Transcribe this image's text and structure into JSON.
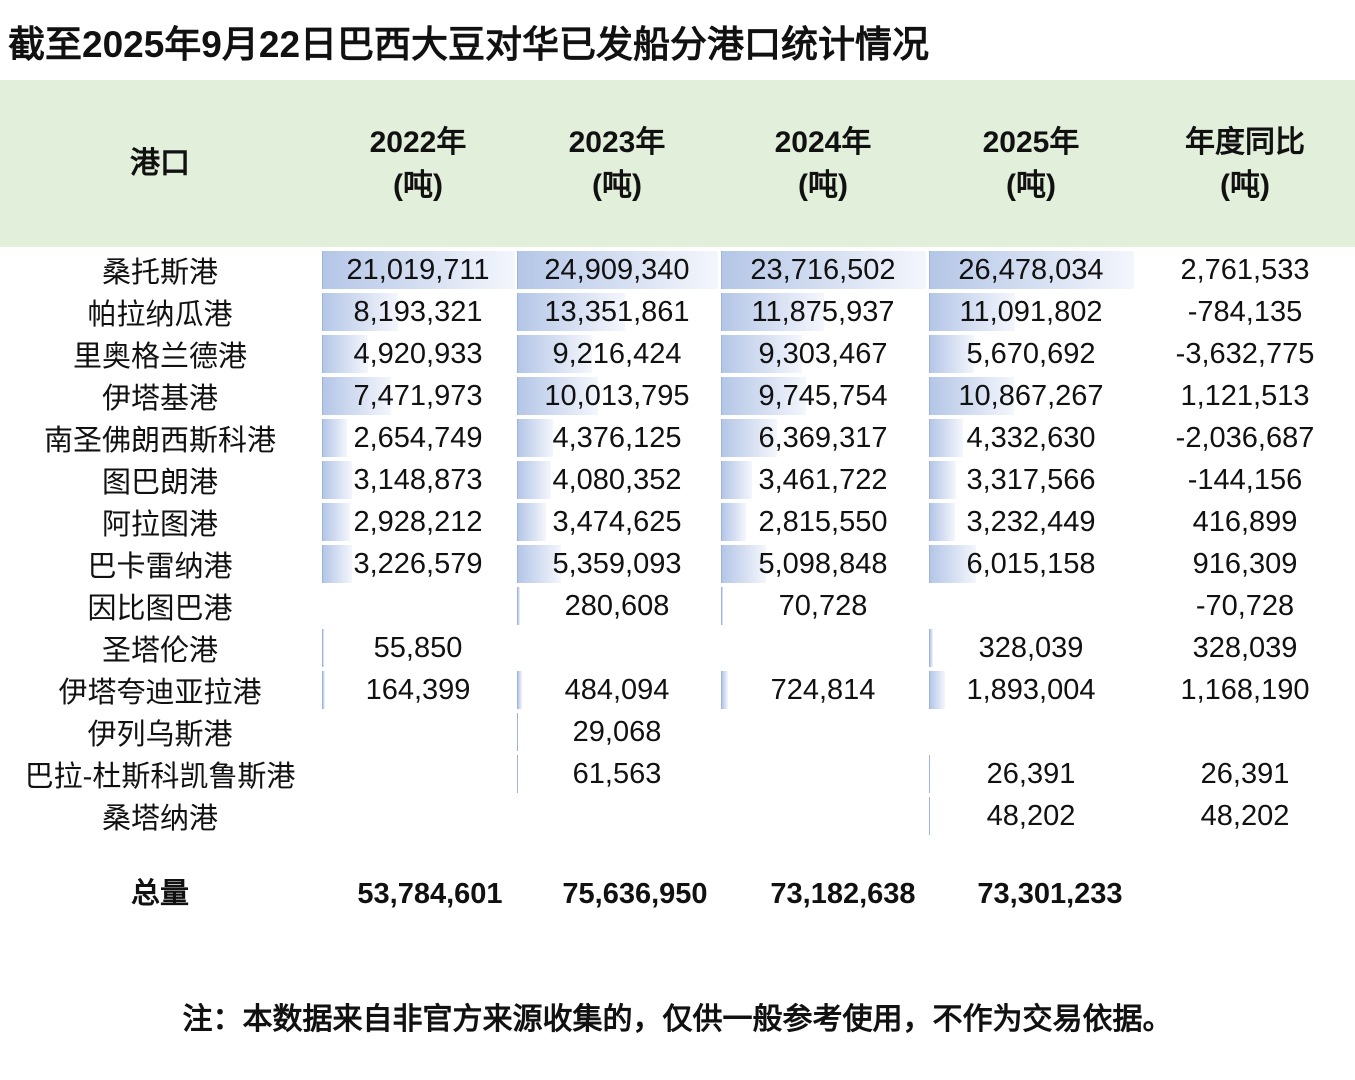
{
  "title": "截至2025年9月22日巴西大豆对华已发船分港口统计情况",
  "header": {
    "port": "港口",
    "cols": [
      "2022年\n(吨)",
      "2023年\n(吨)",
      "2024年\n(吨)",
      "2025年\n(吨)",
      "年度同比\n(吨)"
    ]
  },
  "chart_data": {
    "type": "table",
    "columns": [
      "港口",
      "2022年(吨)",
      "2023年(吨)",
      "2024年(吨)",
      "2025年(吨)",
      "年度同比(吨)"
    ],
    "rows": [
      [
        "桑托斯港",
        21019711,
        24909340,
        23716502,
        26478034,
        2761533
      ],
      [
        "帕拉纳瓜港",
        8193321,
        13351861,
        11875937,
        11091802,
        -784135
      ],
      [
        "里奥格兰德港",
        4920933,
        9216424,
        9303467,
        5670692,
        -3632775
      ],
      [
        "伊塔基港",
        7471973,
        10013795,
        9745754,
        10867267,
        1121513
      ],
      [
        "南圣佛朗西斯科港",
        2654749,
        4376125,
        6369317,
        4332630,
        -2036687
      ],
      [
        "图巴朗港",
        3148873,
        4080352,
        3461722,
        3317566,
        -144156
      ],
      [
        "阿拉图港",
        2928212,
        3474625,
        2815550,
        3232449,
        416899
      ],
      [
        "巴卡雷纳港",
        3226579,
        5359093,
        5098848,
        6015158,
        916309
      ],
      [
        "因比图巴港",
        null,
        280608,
        70728,
        null,
        -70728
      ],
      [
        "圣塔伦港",
        55850,
        null,
        null,
        328039,
        328039
      ],
      [
        "伊塔夸迪亚拉港",
        164399,
        484094,
        724814,
        1893004,
        1168190
      ],
      [
        "伊列乌斯港",
        null,
        29068,
        null,
        null,
        null
      ],
      [
        "巴拉-杜斯科凯鲁斯港",
        null,
        61563,
        null,
        26391,
        26391
      ],
      [
        "桑塔纳港",
        null,
        null,
        null,
        48202,
        48202
      ]
    ],
    "total_label": "总量",
    "totals": [
      53784601,
      75636950,
      73182638,
      73301233
    ]
  },
  "note": "注：本数据来自非官方来源收集的，仅供一般参考使用，不作为交易依据。",
  "colors": {
    "header_bg": "#e2efda",
    "bar": "#b4c6e7"
  }
}
